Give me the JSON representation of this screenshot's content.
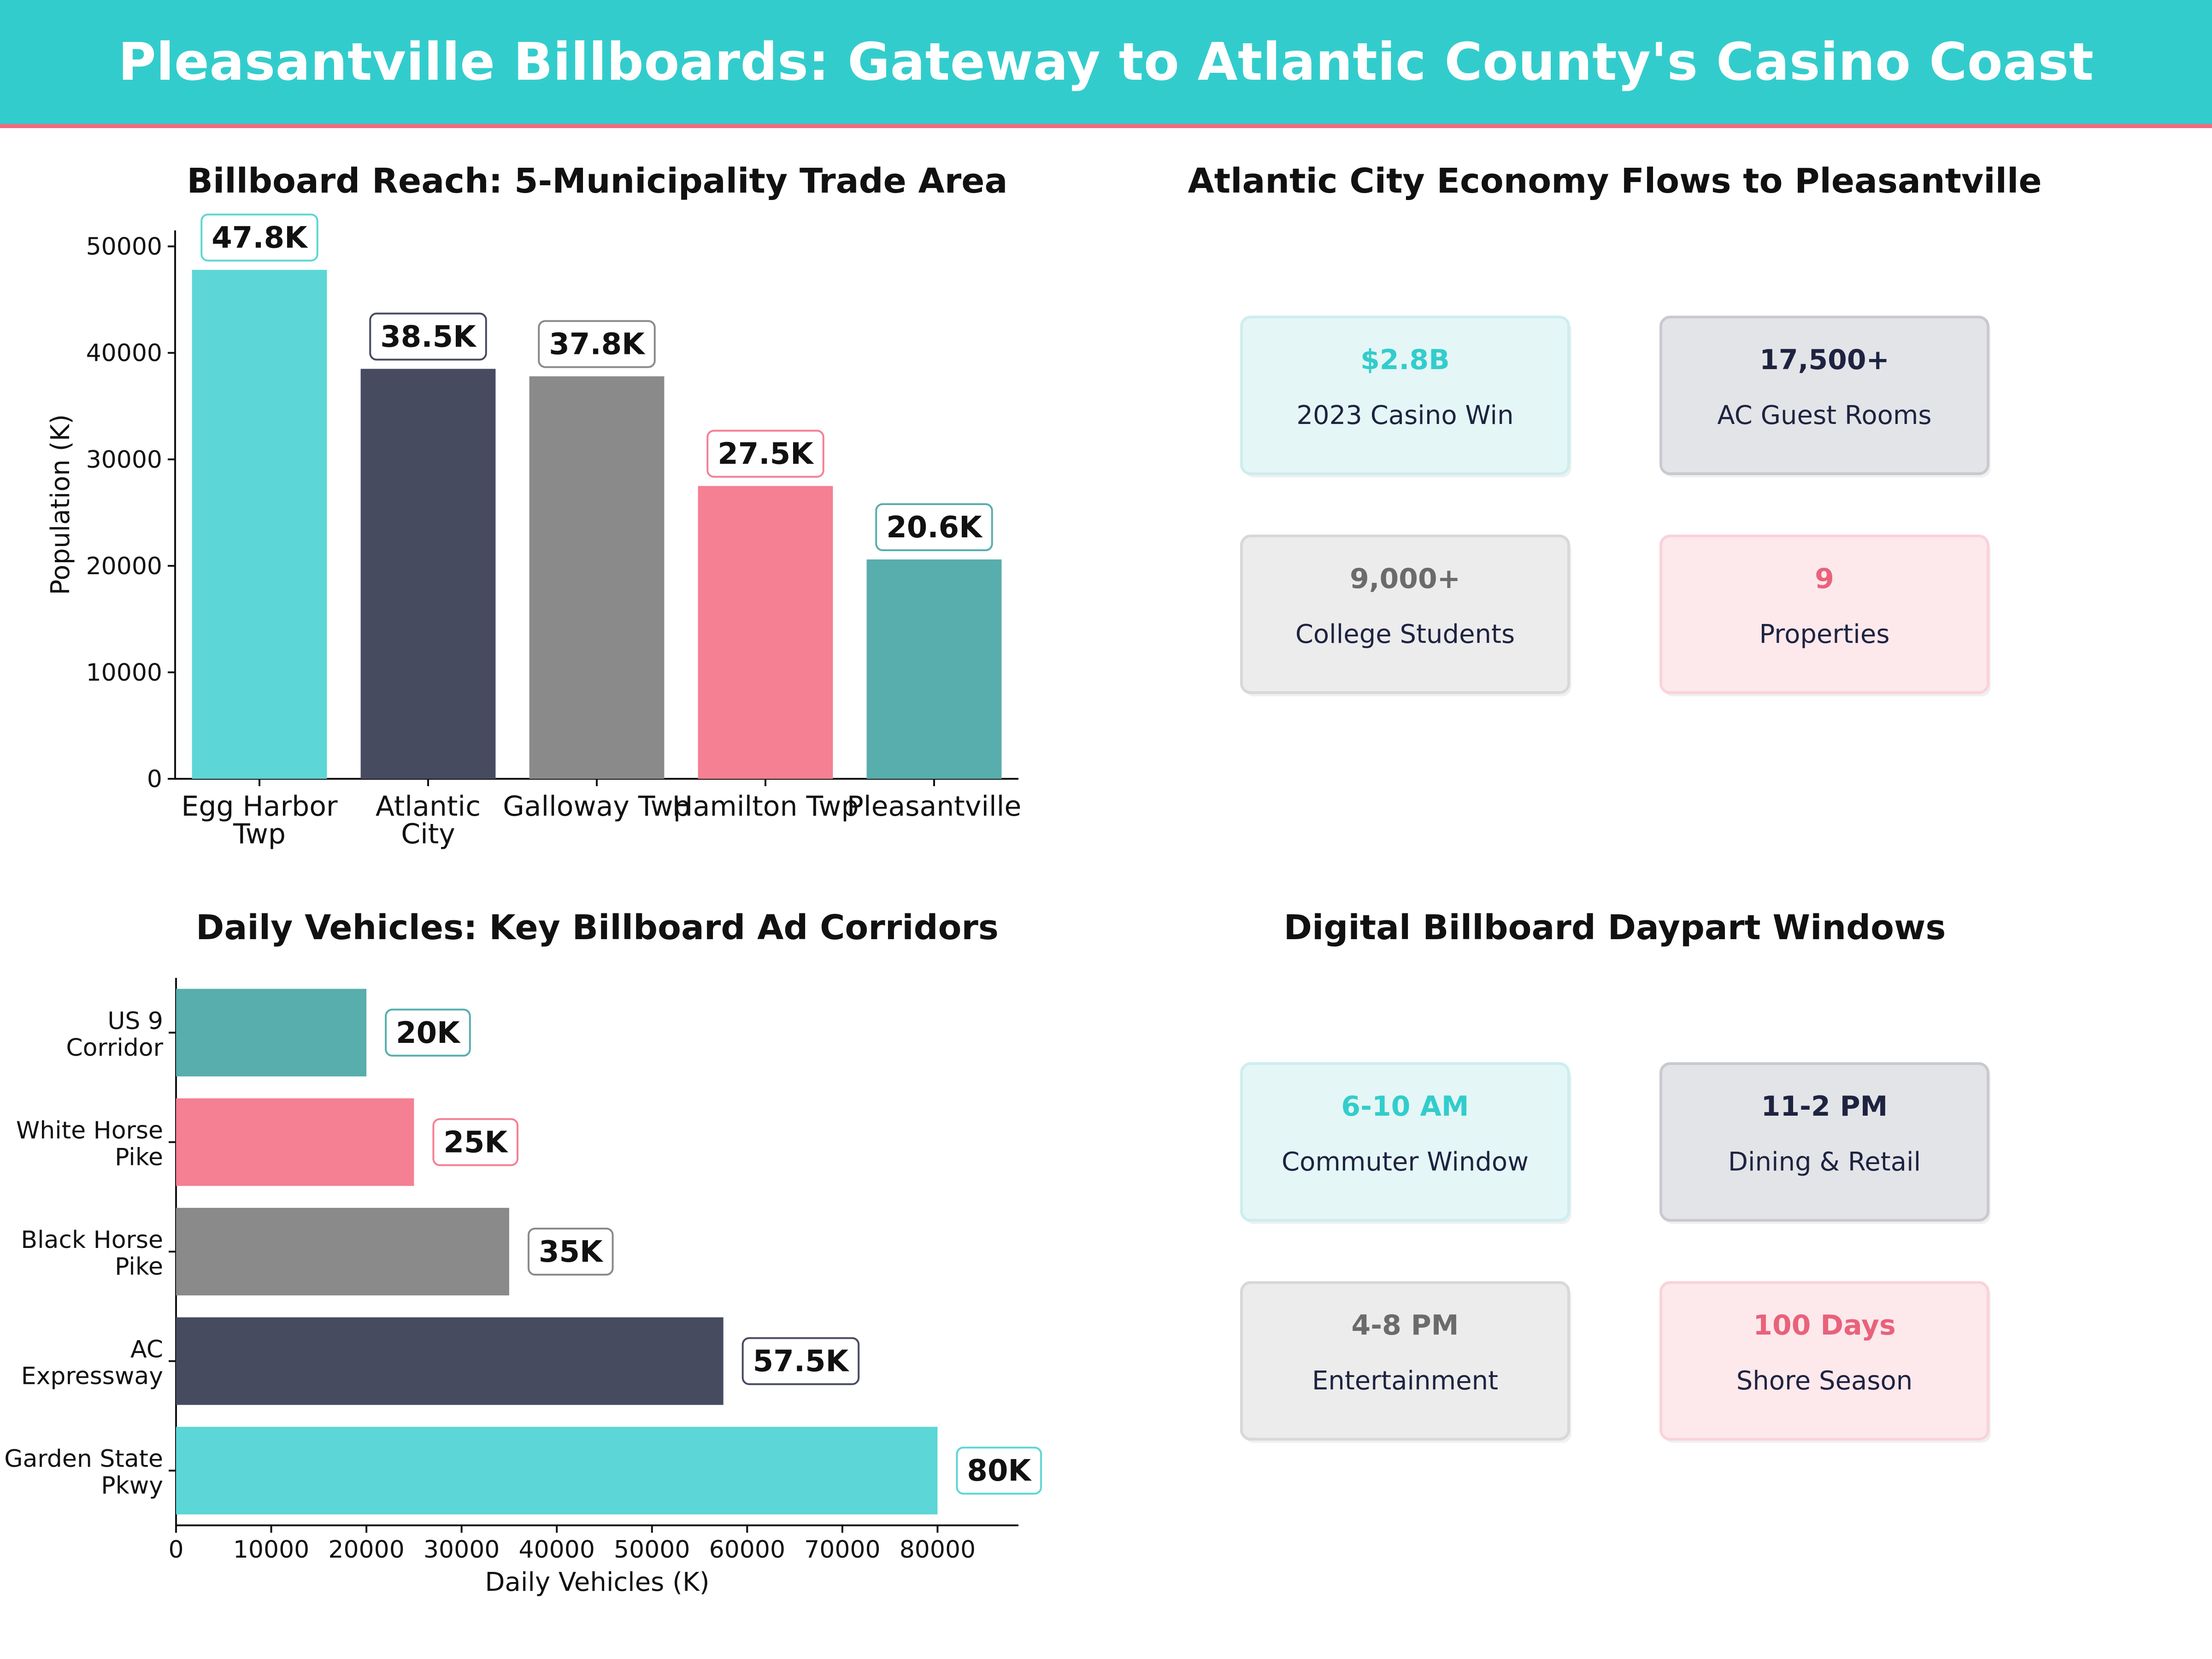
{
  "banner": {
    "title": "Pleasantville Billboards: Gateway to Atlantic County's Casino Coast"
  },
  "colors": {
    "banner_bg": "#33cccc",
    "banner_rule": "#f06c80",
    "teal": "#5cd6d6",
    "navy": "#474b60",
    "gray": "#8a8a8a",
    "pink": "#f57f93",
    "darkteal": "#58adad"
  },
  "chart_data": [
    {
      "type": "bar",
      "title": "Billboard Reach: 5-Municipality Trade Area",
      "ylabel": "Population (K)",
      "xlabel": "",
      "categories": [
        "Egg Harbor\nTwp",
        "Atlantic\nCity",
        "Galloway Twp",
        "Hamilton Twp",
        "Pleasantville"
      ],
      "values": [
        47800,
        38500,
        37800,
        27500,
        20600
      ],
      "labels": [
        "47.8K",
        "38.5K",
        "37.8K",
        "27.5K",
        "20.6K"
      ],
      "colors": [
        "#5cd6d6",
        "#474b60",
        "#8a8a8a",
        "#f57f93",
        "#58adad"
      ],
      "ylim": [
        0,
        51500
      ],
      "yticks": [
        "0",
        "10000",
        "20000",
        "30000",
        "40000",
        "50000"
      ],
      "grid": false
    },
    {
      "type": "bar",
      "orientation": "horizontal",
      "title": "Daily Vehicles: Key Billboard Ad Corridors",
      "xlabel": "Daily Vehicles (K)",
      "ylabel": "",
      "categories": [
        "US 9\nCorridor",
        "White Horse\nPike",
        "Black Horse\nPike",
        "AC\nExpressway",
        "Garden State\nPkwy"
      ],
      "values": [
        20000,
        25000,
        35000,
        57500,
        80000
      ],
      "labels": [
        "20K",
        "25K",
        "35K",
        "57.5K",
        "80K"
      ],
      "colors": [
        "#58adad",
        "#f57f93",
        "#8a8a8a",
        "#474b60",
        "#5cd6d6"
      ],
      "xlim": [
        0,
        88500
      ],
      "xticks": [
        "0",
        "10000",
        "20000",
        "30000",
        "40000",
        "50000",
        "60000",
        "70000",
        "80000"
      ],
      "grid": false
    }
  ],
  "economy": {
    "title": "Atlantic City Economy Flows to Pleasantville",
    "cards": [
      {
        "value": "$2.8B",
        "label": "2023 Casino Win",
        "color": "#33cccc",
        "bg": "#e5f6f6",
        "border": "#cdeeee"
      },
      {
        "value": "17,500+",
        "label": "AC Guest Rooms",
        "color": "#1e2340",
        "bg": "#e3e4e8",
        "border": "#c9cad0"
      },
      {
        "value": "9,000+",
        "label": "College Students",
        "color": "#6b6b6b",
        "bg": "#ececec",
        "border": "#d8d8d8"
      },
      {
        "value": "9",
        "label": "Properties",
        "color": "#e8627a",
        "bg": "#fde8ec",
        "border": "#f9d3da"
      }
    ]
  },
  "daypart": {
    "title": "Digital Billboard Daypart Windows",
    "cards": [
      {
        "value": "6-10 AM",
        "label": "Commuter Window",
        "color": "#33cccc",
        "bg": "#e5f6f6",
        "border": "#cdeeee"
      },
      {
        "value": "11-2 PM",
        "label": "Dining & Retail",
        "color": "#1e2340",
        "bg": "#e3e4e8",
        "border": "#c9cad0"
      },
      {
        "value": "4-8 PM",
        "label": "Entertainment",
        "color": "#6b6b6b",
        "bg": "#ececec",
        "border": "#d8d8d8"
      },
      {
        "value": "100 Days",
        "label": "Shore Season",
        "color": "#e8627a",
        "bg": "#fde8ec",
        "border": "#f9d3da"
      }
    ]
  }
}
